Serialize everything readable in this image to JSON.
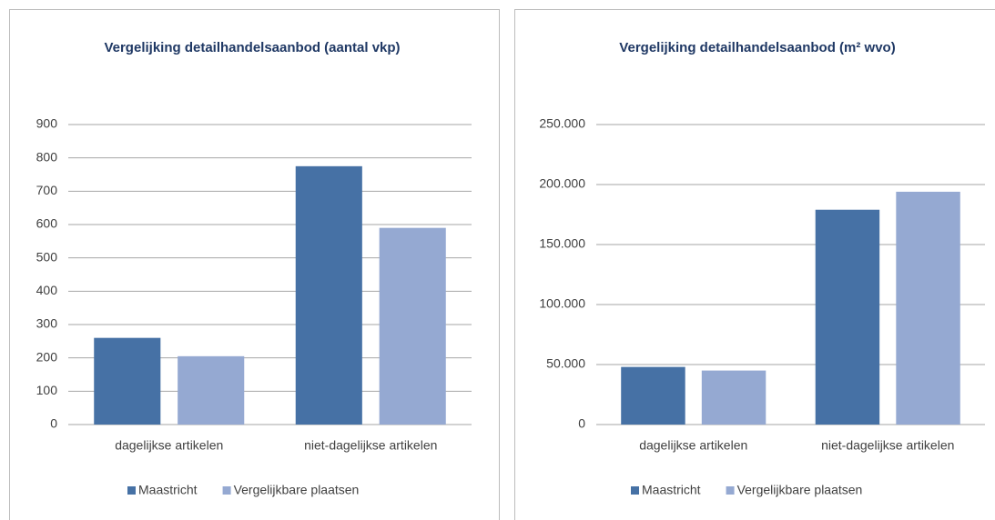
{
  "chart_data": [
    {
      "type": "bar",
      "title": "Vergelijking  detailhandelsaanbod  (aantal vkp)",
      "categories": [
        "dagelijkse artikelen",
        "niet-dagelijkse artikelen"
      ],
      "series": [
        {
          "name": "Maastricht",
          "color": "#4671a5",
          "values": [
            260,
            775
          ]
        },
        {
          "name": "Vergelijkbare plaatsen",
          "color": "#95a9d2",
          "values": [
            205,
            590
          ]
        }
      ],
      "ylim": [
        0,
        900
      ],
      "yticks": [
        0,
        100,
        200,
        300,
        400,
        500,
        600,
        700,
        800,
        900
      ],
      "grid": true,
      "legend": "bottom"
    },
    {
      "type": "bar",
      "title": "Vergelijking  detailhandelsaanbod  (m² wvo)",
      "categories": [
        "dagelijkse artikelen",
        "niet-dagelijkse artikelen"
      ],
      "series": [
        {
          "name": "Maastricht",
          "color": "#4671a5",
          "values": [
            48000,
            179000
          ]
        },
        {
          "name": "Vergelijkbare plaatsen",
          "color": "#95a9d2",
          "values": [
            45000,
            194000
          ]
        }
      ],
      "ylim": [
        0,
        250000
      ],
      "yticks": [
        0,
        {
          "value": 50000,
          "label": "50.000"
        },
        {
          "value": 100000,
          "label": "100.000"
        },
        {
          "value": 150000,
          "label": "150.000"
        },
        {
          "value": 200000,
          "label": "200.000"
        },
        {
          "value": 250000,
          "label": "250.000"
        }
      ],
      "grid": true,
      "legend": "bottom"
    }
  ]
}
